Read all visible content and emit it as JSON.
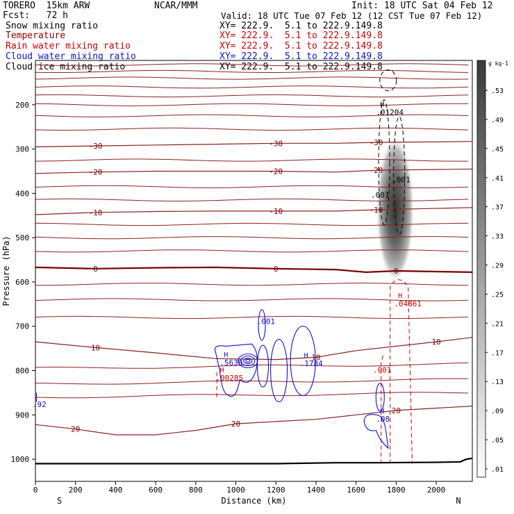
{
  "header": {
    "model": "TORERO  15km ARW",
    "center": "NCAR/MMM",
    "init": "Init: 18 UTC Sat 04 Feb 12",
    "fcst": "Fcst:   72 h",
    "valid": "Valid: 18 UTC Tue 07 Feb 12 (12 CST Tue 07 Feb 12)"
  },
  "fields": [
    {
      "name": "Snow mixing ratio",
      "color": "#000000",
      "range": "XY= 222.9.  5.1 to 222.9.149.8"
    },
    {
      "name": "Temperature",
      "color": "#8b0000",
      "range": "XY= 222.9.  5.1 to 222.9.149.8"
    },
    {
      "name": "Rain water mixing ratio",
      "color": "#cc0000",
      "range": "XY= 222.9.  5.1 to 222.9.149.8"
    },
    {
      "name": "Cloud water mixing ratio",
      "color": "#1010cc",
      "range": "XY= 222.9.  5.1 to 222.9.149.8"
    },
    {
      "name": "Cloud ice mixing ratio",
      "color": "#000000",
      "range": "XY= 222.9.  5.1 to 222.9.149.8"
    }
  ],
  "chart_data": {
    "type": "cross-section contour",
    "xlabel": "Distance (km)",
    "ylabel": "Pressure (hPa)",
    "x_range": [
      0,
      2180
    ],
    "y_range": [
      1050,
      100
    ],
    "x_ticks": [
      0,
      200,
      400,
      600,
      800,
      1000,
      1200,
      1400,
      1600,
      1800,
      2000
    ],
    "y_ticks": [
      200,
      300,
      400,
      500,
      600,
      700,
      800,
      900,
      1000
    ],
    "x_end_labels": {
      "left": "S",
      "right": "N"
    },
    "colorbar": {
      "unit": "g kg-1",
      "labels": [
        ".53",
        ".49",
        ".45",
        ".41",
        ".37",
        ".33",
        ".29",
        ".25",
        ".21",
        ".17",
        ".13",
        ".09",
        ".05",
        ".01"
      ]
    },
    "temperature_isotherms": [
      {
        "label": "-30",
        "points": [
          [
            0,
            295
          ],
          [
            300,
            293
          ],
          [
            600,
            291
          ],
          [
            900,
            289
          ],
          [
            1200,
            287
          ],
          [
            1500,
            287
          ],
          [
            1700,
            285
          ],
          [
            2180,
            283
          ]
        ]
      },
      {
        "label": "-20",
        "points": [
          [
            0,
            355
          ],
          [
            300,
            352
          ],
          [
            600,
            350
          ],
          [
            900,
            350
          ],
          [
            1200,
            350
          ],
          [
            1500,
            352
          ],
          [
            1700,
            348
          ],
          [
            2180,
            345
          ]
        ]
      },
      {
        "label": "-10",
        "points": [
          [
            0,
            448
          ],
          [
            300,
            443
          ],
          [
            600,
            441
          ],
          [
            900,
            440
          ],
          [
            1200,
            440
          ],
          [
            1500,
            440
          ],
          [
            1700,
            437
          ],
          [
            2180,
            432
          ]
        ]
      },
      {
        "label": "0",
        "points": [
          [
            0,
            567
          ],
          [
            300,
            570
          ],
          [
            600,
            568
          ],
          [
            900,
            567
          ],
          [
            1200,
            570
          ],
          [
            1500,
            572
          ],
          [
            1650,
            578
          ],
          [
            1800,
            575
          ],
          [
            2180,
            578
          ]
        ]
      },
      {
        "label": "10",
        "points": [
          [
            0,
            735
          ],
          [
            300,
            748
          ],
          [
            600,
            760
          ],
          [
            900,
            773
          ],
          [
            1200,
            775
          ],
          [
            1400,
            770
          ],
          [
            1600,
            755
          ],
          [
            1800,
            745
          ],
          [
            2000,
            735
          ],
          [
            2180,
            725
          ]
        ]
      },
      {
        "label": "20",
        "points": [
          [
            0,
            922
          ],
          [
            200,
            932
          ],
          [
            400,
            945
          ],
          [
            600,
            945
          ],
          [
            800,
            935
          ],
          [
            1000,
            920
          ],
          [
            1200,
            915
          ],
          [
            1400,
            910
          ],
          [
            1600,
            900
          ],
          [
            1800,
            890
          ],
          [
            2180,
            880
          ]
        ]
      }
    ],
    "maxima": [
      {
        "field": "Snow mixing ratio",
        "label": ".01204",
        "x": 1720,
        "p": 223
      },
      {
        "field": "Rain water mixing ratio",
        "label": ".04861",
        "x": 1810,
        "p": 655
      },
      {
        "field": "Rain water mixing ratio",
        "label": ".00285",
        "x": 920,
        "p": 823
      },
      {
        "field": "Cloud water mixing ratio",
        "label": ".5639",
        "x": 940,
        "p": 788
      },
      {
        "field": "Cloud water mixing ratio",
        "label": ".1784",
        "x": 1340,
        "p": 790
      },
      {
        "field": "Cloud water mixing ratio",
        "label": ".08",
        "x": 1720,
        "p": 915
      }
    ],
    "contour_labels": [
      {
        "field": "Cloud water mixing ratio",
        "label": ".001",
        "x": 1150,
        "p": 695
      },
      {
        "field": "Cloud water mixing ratio",
        "label": ".92",
        "x": 20,
        "p": 882
      },
      {
        "field": "Rain water mixing ratio",
        "label": ".001",
        "x": 1730,
        "p": 805
      },
      {
        "field": "Cloud ice mixing ratio",
        "label": ".001",
        "x": 1825,
        "p": 375
      },
      {
        "field": "Snow mixing ratio",
        "label": ".001",
        "x": 1720,
        "p": 410
      }
    ],
    "shading": {
      "field": "Cloud ice mixing ratio",
      "x_center": 1795,
      "p_top": 250,
      "p_bottom": 590,
      "max": 0.53
    }
  }
}
